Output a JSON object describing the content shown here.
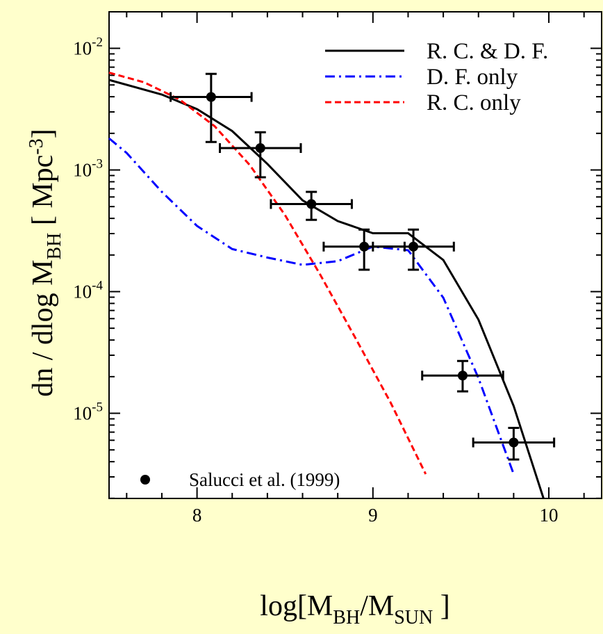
{
  "chart_data": {
    "type": "scatter",
    "xlabel": {
      "pre": "log[M",
      "sub1": "BH",
      "mid": "/M",
      "sub2": "SUN",
      "post": " ]"
    },
    "ylabel": {
      "pre": "dn / dlog M",
      "sub": "BH",
      "mid": "  [ Mpc",
      "sup": "-3",
      "post": "]"
    },
    "xlim": [
      7.5,
      10.3
    ],
    "ylim_log10": [
      -5.7,
      -1.7
    ],
    "y_scale": "log",
    "x_ticks": {
      "labels": [
        "8",
        "9",
        "10"
      ],
      "values": [
        8,
        9,
        10
      ]
    },
    "y_ticks": {
      "base": "10",
      "exponents": [
        "-5",
        "-4",
        "-3",
        "-2"
      ],
      "values": [
        -5,
        -4,
        -3,
        -2
      ]
    },
    "grid": false,
    "legend_position": "top-right",
    "series": [
      {
        "name": "R. C. & D. F.",
        "style": "solid",
        "color": "#000000",
        "x": [
          7.5,
          7.8,
          8.0,
          8.2,
          8.4,
          8.6,
          8.8,
          9.0,
          9.2,
          9.4,
          9.6,
          9.8,
          9.97
        ],
        "log10_y": [
          -2.26,
          -2.38,
          -2.5,
          -2.68,
          -2.95,
          -3.25,
          -3.42,
          -3.52,
          -3.52,
          -3.74,
          -4.23,
          -4.94,
          -5.7
        ]
      },
      {
        "name": "D. F. only",
        "style": "dash-dot",
        "color": "#0000ff",
        "x": [
          7.5,
          7.6,
          7.8,
          8.0,
          8.2,
          8.4,
          8.6,
          8.8,
          9.0,
          9.2,
          9.4,
          9.6,
          9.8
        ],
        "log10_y": [
          -2.74,
          -2.86,
          -3.18,
          -3.46,
          -3.65,
          -3.72,
          -3.78,
          -3.75,
          -3.63,
          -3.66,
          -4.05,
          -4.71,
          -5.5
        ]
      },
      {
        "name": "R. C. only",
        "style": "dashed",
        "color": "#ff0000",
        "x": [
          7.5,
          7.7,
          7.9,
          8.1,
          8.3,
          8.5,
          8.7,
          8.9,
          9.1,
          9.3
        ],
        "log10_y": [
          -2.2,
          -2.28,
          -2.42,
          -2.64,
          -2.96,
          -3.37,
          -3.86,
          -4.38,
          -4.91,
          -5.5
        ]
      }
    ],
    "points": {
      "name": "Salucci et al. (1999)",
      "x": [
        8.08,
        8.36,
        8.65,
        8.95,
        9.23,
        9.51,
        9.8
      ],
      "x_err": [
        0.23,
        0.23,
        0.23,
        0.23,
        0.23,
        0.23,
        0.23
      ],
      "log10_y": [
        -2.4,
        -2.82,
        -3.28,
        -3.63,
        -3.63,
        -4.69,
        -5.24
      ],
      "log10_lo": [
        -2.77,
        -3.06,
        -3.41,
        -3.82,
        -3.82,
        -4.82,
        -5.38
      ],
      "log10_hi": [
        -2.21,
        -2.69,
        -3.18,
        -3.49,
        -3.49,
        -4.57,
        -5.12
      ]
    }
  }
}
